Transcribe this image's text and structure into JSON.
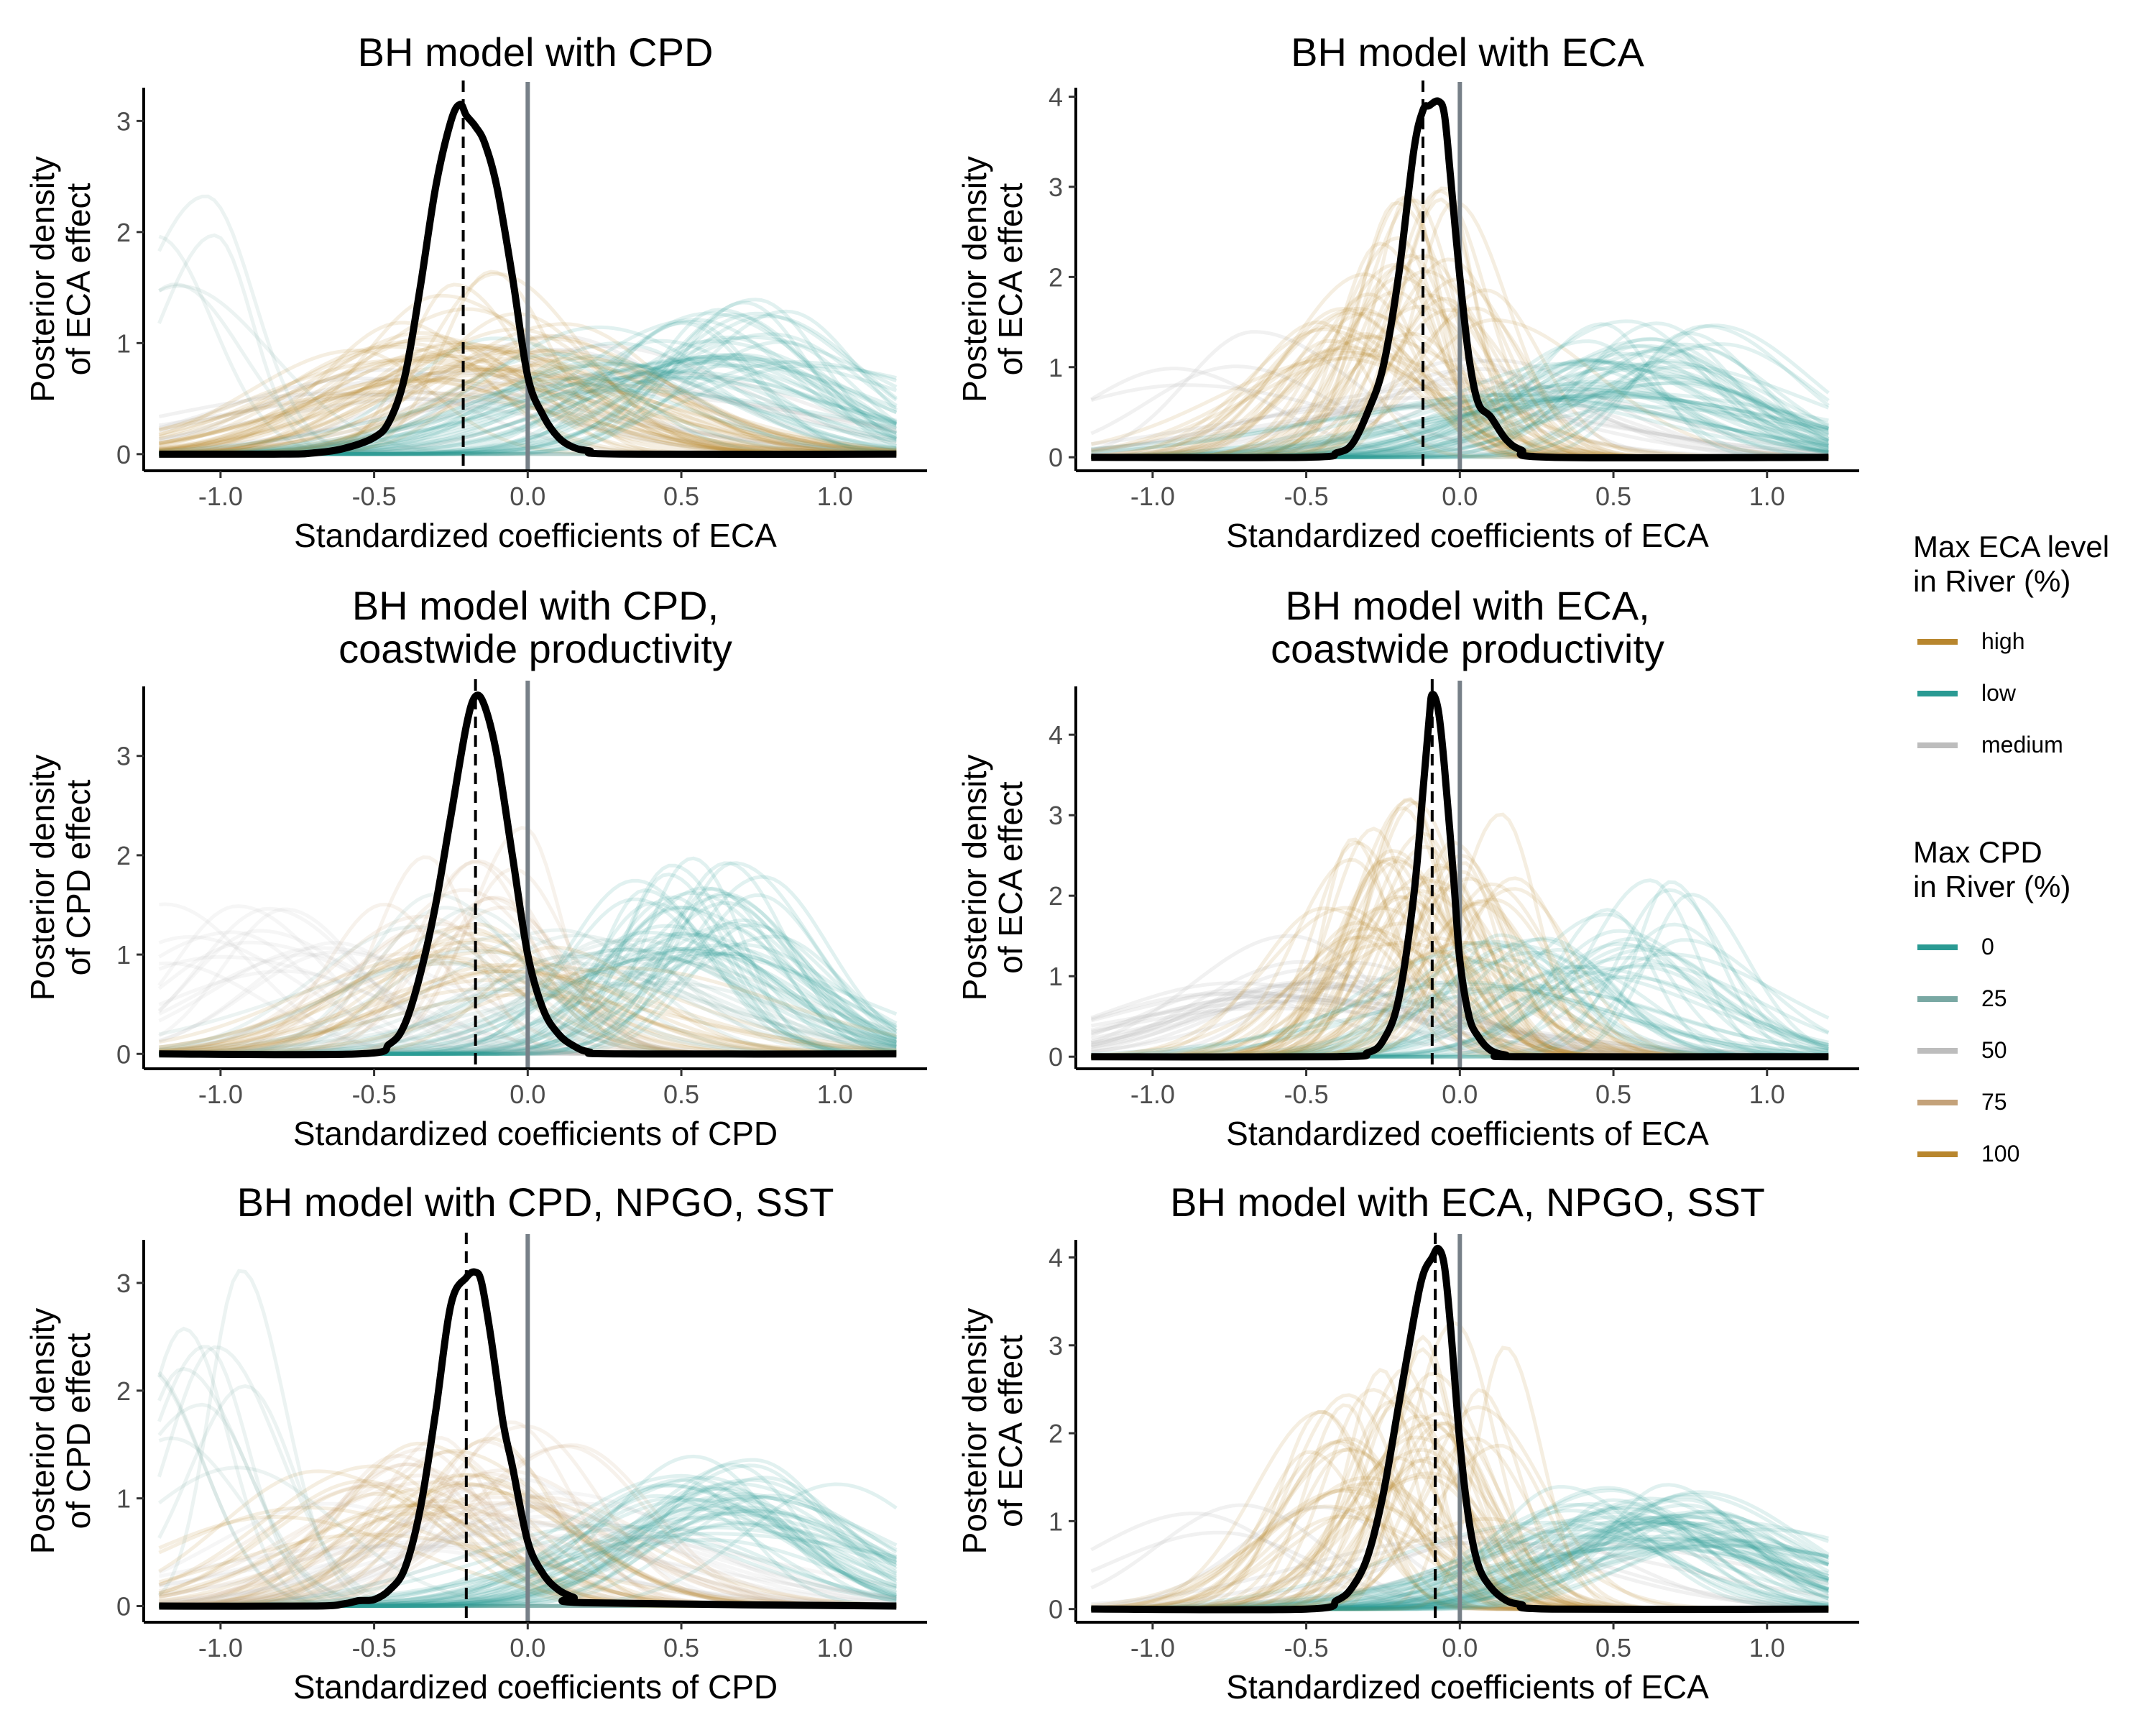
{
  "colors": {
    "high": "#b8862e",
    "low": "#2a9a93",
    "medium": "#bdbdbd",
    "cpd_0": "#2a9a93",
    "cpd_25": "#79a8a3",
    "cpd_50": "#bdbdbd",
    "cpd_75": "#c4a27a",
    "cpd_100": "#b8862e",
    "posterior": "#000000",
    "zero_line": "#778088"
  },
  "chart_data": [
    {
      "type": "line",
      "title_lines": [
        "BH model with CPD"
      ],
      "xlabel": "Standardized coefficients of ECA",
      "ylabel_lines": [
        "Posterior density",
        "of ECA effect"
      ],
      "xlim": [
        -1.25,
        1.3
      ],
      "ylim": [
        -0.15,
        3.3
      ],
      "xticks": [
        -1.0,
        -0.5,
        0.0,
        0.5,
        1.0
      ],
      "xtick_labels": [
        "-1.0",
        "-0.5",
        "0.0",
        "0.5",
        "1.0"
      ],
      "yticks": [
        0,
        1,
        2,
        3
      ],
      "ytick_labels": [
        "0",
        "1",
        "2",
        "3"
      ],
      "posterior": {
        "x": [
          -1.2,
          -0.8,
          -0.7,
          -0.6,
          -0.5,
          -0.45,
          -0.4,
          -0.35,
          -0.3,
          -0.25,
          -0.22,
          -0.2,
          -0.17,
          -0.14,
          -0.1,
          -0.05,
          0.0,
          0.05,
          0.1,
          0.15,
          0.2,
          0.3,
          1.2
        ],
        "y": [
          0,
          0,
          0.01,
          0.05,
          0.15,
          0.3,
          0.7,
          1.5,
          2.4,
          3.0,
          3.15,
          3.05,
          2.95,
          2.8,
          2.4,
          1.6,
          0.7,
          0.35,
          0.15,
          0.06,
          0.03,
          0,
          0
        ]
      },
      "posterior_mean": -0.21,
      "zero_line": 0.0,
      "groups": [
        {
          "group": "high",
          "weight": 0.35,
          "peaks": [
            -0.35,
            -0.2,
            0.0
          ],
          "heights": [
            1.0,
            1.5,
            1.2
          ]
        },
        {
          "group": "low",
          "weight": 0.45,
          "peaks": [
            0.3,
            0.55,
            0.7
          ],
          "heights": [
            1.0,
            1.2,
            1.3
          ]
        },
        {
          "group": "low_left",
          "weight": 0.1,
          "peaks": [
            -1.1,
            -1.05
          ],
          "heights": [
            2.2,
            2.5
          ]
        },
        {
          "group": "medium",
          "weight": 0.1,
          "peaks": [
            -0.5,
            0.2
          ],
          "heights": [
            0.8,
            1.0
          ]
        }
      ]
    },
    {
      "type": "line",
      "title_lines": [
        "BH model with ECA"
      ],
      "xlabel": "Standardized coefficients of ECA",
      "ylabel_lines": [
        "Posterior density",
        "of ECA effect"
      ],
      "xlim": [
        -1.25,
        1.3
      ],
      "ylim": [
        -0.15,
        4.1
      ],
      "xticks": [
        -1.0,
        -0.5,
        0.0,
        0.5,
        1.0
      ],
      "xtick_labels": [
        "-1.0",
        "-0.5",
        "0.0",
        "0.5",
        "1.0"
      ],
      "yticks": [
        0,
        1,
        2,
        3,
        4
      ],
      "ytick_labels": [
        "0",
        "1",
        "2",
        "3",
        "4"
      ],
      "posterior": {
        "x": [
          -1.2,
          -0.5,
          -0.4,
          -0.35,
          -0.3,
          -0.25,
          -0.2,
          -0.15,
          -0.12,
          -0.1,
          -0.07,
          -0.05,
          -0.03,
          0.0,
          0.03,
          0.06,
          0.1,
          0.15,
          0.2,
          0.3,
          1.2
        ],
        "y": [
          0,
          0,
          0.05,
          0.15,
          0.5,
          1.0,
          2.0,
          3.4,
          3.85,
          3.9,
          3.95,
          3.8,
          3.1,
          2.0,
          1.1,
          0.6,
          0.45,
          0.2,
          0.08,
          0,
          0
        ]
      },
      "posterior_mean": -0.12,
      "zero_line": 0.0,
      "groups": [
        {
          "group": "high",
          "weight": 0.4,
          "peaks": [
            -0.3,
            -0.2,
            -0.1
          ],
          "heights": [
            1.5,
            2.0,
            2.8
          ]
        },
        {
          "group": "low",
          "weight": 0.45,
          "peaks": [
            0.4,
            0.6,
            0.7
          ],
          "heights": [
            1.0,
            1.2,
            1.4
          ]
        },
        {
          "group": "medium",
          "weight": 0.15,
          "peaks": [
            -0.8,
            0.0
          ],
          "heights": [
            1.3,
            1.0
          ]
        }
      ]
    },
    {
      "type": "line",
      "title_lines": [
        "BH model with CPD,",
        "coastwide productivity"
      ],
      "xlabel": "Standardized coefficients of CPD",
      "ylabel_lines": [
        "Posterior density",
        "of CPD effect"
      ],
      "xlim": [
        -1.25,
        1.3
      ],
      "ylim": [
        -0.15,
        3.7
      ],
      "xticks": [
        -1.0,
        -0.5,
        0.0,
        0.5,
        1.0
      ],
      "xtick_labels": [
        "-1.0",
        "-0.5",
        "0.0",
        "0.5",
        "1.0"
      ],
      "yticks": [
        0,
        1,
        2,
        3
      ],
      "ytick_labels": [
        "0",
        "1",
        "2",
        "3"
      ],
      "posterior": {
        "x": [
          -1.2,
          -0.55,
          -0.45,
          -0.4,
          -0.35,
          -0.3,
          -0.25,
          -0.2,
          -0.17,
          -0.14,
          -0.1,
          -0.05,
          0.0,
          0.05,
          0.1,
          0.15,
          0.2,
          0.3,
          1.2
        ],
        "y": [
          0,
          0,
          0.1,
          0.3,
          0.8,
          1.5,
          2.4,
          3.3,
          3.6,
          3.5,
          3.0,
          2.0,
          1.0,
          0.45,
          0.2,
          0.08,
          0.02,
          0,
          0
        ]
      },
      "posterior_mean": -0.17,
      "zero_line": 0.0,
      "groups": [
        {
          "group": "cpd_0",
          "weight": 0.35,
          "peaks": [
            0.5,
            0.6
          ],
          "heights": [
            1.5,
            1.8
          ]
        },
        {
          "group": "cpd_25",
          "weight": 0.2,
          "peaks": [
            -0.2,
            0.3
          ],
          "heights": [
            1.5,
            1.2
          ]
        },
        {
          "group": "cpd_50",
          "weight": 0.15,
          "peaks": [
            -1.0,
            -0.8
          ],
          "heights": [
            1.6,
            1.4
          ]
        },
        {
          "group": "cpd_75",
          "weight": 0.15,
          "peaks": [
            -0.3,
            -0.15
          ],
          "heights": [
            1.8,
            2.1
          ]
        },
        {
          "group": "cpd_100",
          "weight": 0.15,
          "peaks": [
            -0.2,
            0.0
          ],
          "heights": [
            1.2,
            1.0
          ]
        }
      ]
    },
    {
      "type": "line",
      "title_lines": [
        "BH model with ECA,",
        "coastwide productivity"
      ],
      "xlabel": "Standardized coefficients of ECA",
      "ylabel_lines": [
        "Posterior density",
        "of ECA effect"
      ],
      "xlim": [
        -1.25,
        1.3
      ],
      "ylim": [
        -0.15,
        4.6
      ],
      "xticks": [
        -1.0,
        -0.5,
        0.0,
        0.5,
        1.0
      ],
      "xtick_labels": [
        "-1.0",
        "-0.5",
        "0.0",
        "0.5",
        "1.0"
      ],
      "yticks": [
        0,
        1,
        2,
        3,
        4
      ],
      "ytick_labels": [
        "0",
        "1",
        "2",
        "3",
        "4"
      ],
      "posterior": {
        "x": [
          -1.2,
          -0.4,
          -0.3,
          -0.25,
          -0.2,
          -0.15,
          -0.12,
          -0.1,
          -0.09,
          -0.07,
          -0.05,
          -0.02,
          0.0,
          0.03,
          0.06,
          0.1,
          0.15,
          0.2,
          1.2
        ],
        "y": [
          0,
          0,
          0.05,
          0.2,
          0.7,
          2.0,
          3.3,
          4.2,
          4.5,
          4.3,
          3.6,
          2.2,
          1.2,
          0.5,
          0.25,
          0.08,
          0.02,
          0,
          0
        ]
      },
      "posterior_mean": -0.09,
      "zero_line": 0.0,
      "groups": [
        {
          "group": "high",
          "weight": 0.45,
          "peaks": [
            -0.2,
            -0.1,
            0.0
          ],
          "heights": [
            2.5,
            3.0,
            2.2
          ]
        },
        {
          "group": "low",
          "weight": 0.35,
          "peaks": [
            0.5,
            0.55,
            0.2
          ],
          "heights": [
            1.8,
            2.0,
            1.4
          ]
        },
        {
          "group": "medium",
          "weight": 0.2,
          "peaks": [
            -0.6,
            -0.3
          ],
          "heights": [
            1.0,
            1.5
          ]
        }
      ]
    },
    {
      "type": "line",
      "title_lines": [
        "BH model with CPD, NPGO, SST"
      ],
      "xlabel": "Standardized coefficients of CPD",
      "ylabel_lines": [
        "Posterior density",
        "of CPD effect"
      ],
      "xlim": [
        -1.25,
        1.3
      ],
      "ylim": [
        -0.15,
        3.4
      ],
      "xticks": [
        -1.0,
        -0.5,
        0.0,
        0.5,
        1.0
      ],
      "xtick_labels": [
        "-1.0",
        "-0.5",
        "0.0",
        "0.5",
        "1.0"
      ],
      "yticks": [
        0,
        1,
        2,
        3
      ],
      "ytick_labels": [
        "0",
        "1",
        "2",
        "3"
      ],
      "posterior": {
        "x": [
          -1.2,
          -0.7,
          -0.6,
          -0.55,
          -0.5,
          -0.45,
          -0.4,
          -0.35,
          -0.3,
          -0.25,
          -0.2,
          -0.17,
          -0.15,
          -0.12,
          -0.08,
          -0.05,
          0.0,
          0.05,
          0.1,
          0.15,
          0.2,
          1.2
        ],
        "y": [
          0,
          0,
          0.02,
          0.05,
          0.06,
          0.15,
          0.35,
          0.9,
          1.8,
          2.8,
          3.05,
          3.1,
          3.0,
          2.5,
          1.7,
          1.3,
          0.6,
          0.3,
          0.15,
          0.08,
          0.03,
          0
        ]
      },
      "posterior_mean": -0.2,
      "zero_line": 0.0,
      "groups": [
        {
          "group": "cpd_0",
          "weight": 0.35,
          "peaks": [
            0.5,
            0.7
          ],
          "heights": [
            1.1,
            1.3
          ]
        },
        {
          "group": "cpd_25",
          "weight": 0.15,
          "peaks": [
            -1.1,
            -1.05
          ],
          "heights": [
            2.3,
            3.0
          ]
        },
        {
          "group": "cpd_50",
          "weight": 0.15,
          "peaks": [
            -0.4,
            0.1
          ],
          "heights": [
            1.0,
            1.1
          ]
        },
        {
          "group": "cpd_75",
          "weight": 0.2,
          "peaks": [
            -0.3,
            -0.1
          ],
          "heights": [
            1.4,
            1.6
          ]
        },
        {
          "group": "cpd_100",
          "weight": 0.15,
          "peaks": [
            -0.5,
            -0.2
          ],
          "heights": [
            1.2,
            1.5
          ]
        }
      ]
    },
    {
      "type": "line",
      "title_lines": [
        "BH model with ECA, NPGO, SST"
      ],
      "xlabel": "Standardized coefficients of ECA",
      "ylabel_lines": [
        "Posterior density",
        "of ECA effect"
      ],
      "xlim": [
        -1.25,
        1.3
      ],
      "ylim": [
        -0.15,
        4.2
      ],
      "xticks": [
        -1.0,
        -0.5,
        0.0,
        0.5,
        1.0
      ],
      "xtick_labels": [
        "-1.0",
        "-0.5",
        "0.0",
        "0.5",
        "1.0"
      ],
      "yticks": [
        0,
        1,
        2,
        3,
        4
      ],
      "ytick_labels": [
        "0",
        "1",
        "2",
        "3",
        "4"
      ],
      "posterior": {
        "x": [
          -1.2,
          -0.5,
          -0.4,
          -0.35,
          -0.3,
          -0.25,
          -0.2,
          -0.15,
          -0.12,
          -0.09,
          -0.07,
          -0.05,
          -0.03,
          0.0,
          0.03,
          0.06,
          0.1,
          0.15,
          0.2,
          0.3,
          1.2
        ],
        "y": [
          0,
          0,
          0.1,
          0.25,
          0.6,
          1.3,
          2.3,
          3.3,
          3.8,
          4.0,
          4.1,
          3.9,
          3.2,
          1.9,
          1.0,
          0.5,
          0.25,
          0.1,
          0.05,
          0,
          0
        ]
      },
      "posterior_mean": -0.08,
      "zero_line": 0.0,
      "groups": [
        {
          "group": "high",
          "weight": 0.4,
          "peaks": [
            -0.3,
            -0.2,
            0.0
          ],
          "heights": [
            1.8,
            2.5,
            3.0
          ]
        },
        {
          "group": "low",
          "weight": 0.45,
          "peaks": [
            0.5,
            0.6,
            0.7
          ],
          "heights": [
            1.1,
            1.3,
            1.2
          ]
        },
        {
          "group": "medium",
          "weight": 0.15,
          "peaks": [
            -0.8,
            0.1
          ],
          "heights": [
            1.2,
            1.0
          ]
        }
      ]
    }
  ],
  "legend": {
    "eca": {
      "title_lines": [
        "Max ECA level",
        "in River (%)"
      ],
      "items": [
        {
          "label": "high",
          "color": "#b8862e"
        },
        {
          "label": "low",
          "color": "#2a9a93"
        },
        {
          "label": "medium",
          "color": "#bdbdbd"
        }
      ]
    },
    "cpd": {
      "title_lines": [
        "Max CPD",
        "in River (%)"
      ],
      "items": [
        {
          "label": "0",
          "color": "#2a9a93"
        },
        {
          "label": "25",
          "color": "#79a8a3"
        },
        {
          "label": "50",
          "color": "#bdbdbd"
        },
        {
          "label": "75",
          "color": "#c4a27a"
        },
        {
          "label": "100",
          "color": "#b8862e"
        }
      ]
    }
  }
}
